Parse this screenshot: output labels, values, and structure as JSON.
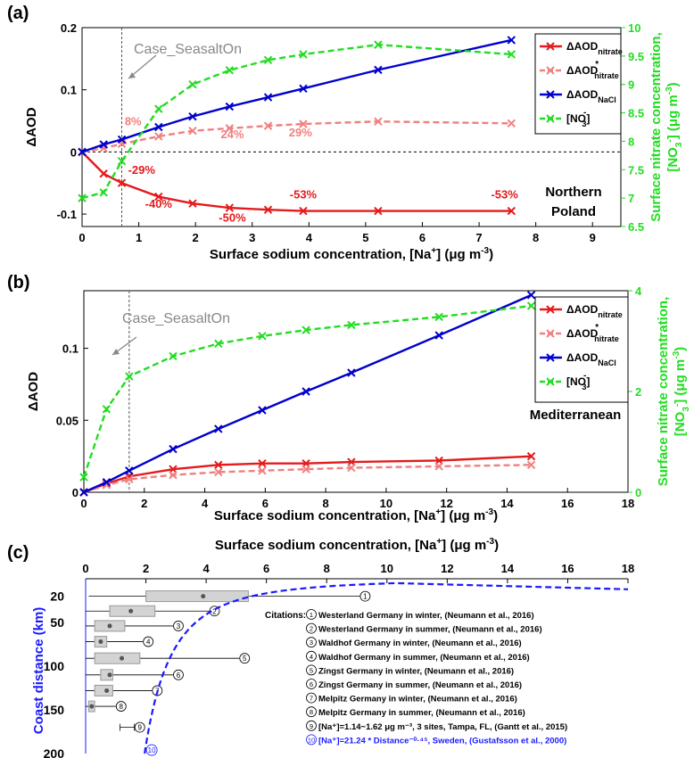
{
  "colors": {
    "nitrate": "#e41a1c",
    "nitrate_star": "#f08080",
    "nacl": "#0000cc",
    "no3": "#22dd22",
    "case_line": "#555555",
    "annotation_gray": "#888888",
    "citation_blue": "#1a1aff",
    "box_fill": "#d3d3d3",
    "box_stroke": "#999999"
  },
  "chart_data": [
    {
      "id": "a",
      "type": "line",
      "panel_label": "(a)",
      "region_label_line1": "Northern",
      "region_label_line2": "Poland",
      "xlabel": "Surface sodium concentration, [Na",
      "xlabel_sup": "+",
      "xlabel_unit": "]  (μg m",
      "xlabel_unit_sup": "-3",
      "xlabel_end": ")",
      "ylabel": "ΔAOD",
      "y2label_line1": "Surface nitrate concentration,",
      "y2label_line2": "[NO",
      "y2label_line2_sub": "3",
      "y2label_line2_sup": "-",
      "y2label_line2_end": "]  (μg m",
      "y2label_line2_unit_sup": "-3",
      "y2label_line2_close": ")",
      "xlim": [
        0,
        9.5
      ],
      "ylim": [
        -0.12,
        0.2
      ],
      "y2lim": [
        6.5,
        10
      ],
      "xticks": [
        "0",
        "1",
        "2",
        "3",
        "4",
        "5",
        "6",
        "7",
        "8",
        "9"
      ],
      "xtick_values": [
        0,
        1,
        2,
        3,
        4,
        5,
        6,
        7,
        8,
        9
      ],
      "yticks": [
        "-0.1",
        "0",
        "0.1",
        "0.2"
      ],
      "ytick_values": [
        -0.1,
        0,
        0.1,
        0.2
      ],
      "y2ticks": [
        "6.5",
        "7",
        "7.5",
        "8",
        "8.5",
        "9",
        "9.5",
        "10"
      ],
      "y2tick_values": [
        6.5,
        7,
        7.5,
        8,
        8.5,
        9,
        9.5,
        10
      ],
      "case_x": 0.7,
      "case_label": "Case_SeasaltOn",
      "legend_placement": "top-right",
      "series": [
        {
          "name": "ΔAOD",
          "sub": "nitrate",
          "sup": "",
          "style": "solid",
          "color_key": "nitrate",
          "axis": "left",
          "x": [
            0,
            0.38,
            0.7,
            1.35,
            1.95,
            2.6,
            3.28,
            3.9,
            5.22,
            7.57
          ],
          "y": [
            0,
            -0.035,
            -0.05,
            -0.072,
            -0.083,
            -0.09,
            -0.093,
            -0.095,
            -0.095,
            -0.095
          ]
        },
        {
          "name": "ΔAOD",
          "sub": "nitrate",
          "sup": "*",
          "style": "dashed",
          "color_key": "nitrate_star",
          "axis": "left",
          "x": [
            0,
            0.38,
            0.7,
            1.35,
            1.95,
            2.6,
            3.28,
            3.9,
            5.22,
            7.57
          ],
          "y": [
            0,
            0.006,
            0.013,
            0.025,
            0.034,
            0.038,
            0.042,
            0.045,
            0.049,
            0.046
          ]
        },
        {
          "name": "ΔAOD",
          "sub": "NaCl",
          "sup": "",
          "style": "solid",
          "color_key": "nacl",
          "axis": "left",
          "x": [
            0,
            0.38,
            0.7,
            1.35,
            1.95,
            2.6,
            3.28,
            3.9,
            5.22,
            7.57
          ],
          "y": [
            0,
            0.012,
            0.02,
            0.04,
            0.057,
            0.073,
            0.088,
            0.102,
            0.132,
            0.18
          ]
        },
        {
          "name": "[NO",
          "sub": "3",
          "sup": "-",
          "name_end": "]",
          "style": "dashed",
          "color_key": "no3",
          "axis": "right",
          "x": [
            0,
            0.38,
            0.7,
            1.35,
            1.95,
            2.6,
            3.28,
            3.9,
            5.22,
            7.57
          ],
          "y": [
            7.0,
            7.1,
            7.65,
            8.57,
            9.0,
            9.25,
            9.43,
            9.53,
            9.7,
            9.53
          ]
        }
      ],
      "annotations": [
        {
          "text": "8%",
          "x": 0.9,
          "y": 0.043,
          "color_key": "nitrate_star"
        },
        {
          "text": "24%",
          "x": 2.65,
          "y": 0.022,
          "color_key": "nitrate_star"
        },
        {
          "text": "29%",
          "x": 3.85,
          "y": 0.025,
          "color_key": "nitrate_star"
        },
        {
          "text": "-29%",
          "x": 1.05,
          "y": -0.035,
          "color_key": "nitrate"
        },
        {
          "text": "-40%",
          "x": 1.35,
          "y": -0.09,
          "color_key": "nitrate"
        },
        {
          "text": "-50%",
          "x": 2.65,
          "y": -0.112,
          "color_key": "nitrate"
        },
        {
          "text": "-53%",
          "x": 3.9,
          "y": -0.075,
          "color_key": "nitrate"
        },
        {
          "text": "-53%",
          "x": 7.45,
          "y": -0.075,
          "color_key": "nitrate"
        }
      ]
    },
    {
      "id": "b",
      "type": "line",
      "panel_label": "(b)",
      "region_label_line1": "Mediterranean",
      "region_label_line2": "",
      "xlabel": "Surface sodium concentration, [Na",
      "xlabel_sup": "+",
      "xlabel_unit": "]  (μg m",
      "xlabel_unit_sup": "-3",
      "xlabel_end": ")",
      "ylabel": "ΔAOD",
      "y2label_line1": "Surface nitrate concentration,",
      "y2label_line2": "[NO",
      "y2label_line2_sub": "3",
      "y2label_line2_sup": "-",
      "y2label_line2_end": "]  (μg m",
      "y2label_line2_unit_sup": "-3",
      "y2label_line2_close": ")",
      "xlim": [
        0,
        18
      ],
      "ylim": [
        0,
        0.14
      ],
      "y2lim": [
        0,
        4
      ],
      "xticks": [
        "0",
        "2",
        "4",
        "6",
        "8",
        "10",
        "12",
        "14",
        "16",
        "18"
      ],
      "xtick_values": [
        0,
        2,
        4,
        6,
        8,
        10,
        12,
        14,
        16,
        18
      ],
      "yticks": [
        "0",
        "0.05",
        "0.1"
      ],
      "ytick_values": [
        0,
        0.05,
        0.1
      ],
      "y2ticks": [
        "0",
        "2",
        "4"
      ],
      "y2tick_values": [
        0,
        2,
        4
      ],
      "case_x": 1.5,
      "case_label": "Case_SeasaltOn",
      "legend_placement": "top-right",
      "series": [
        {
          "name": "ΔAOD",
          "sub": "nitrate",
          "sup": "",
          "style": "solid",
          "color_key": "nitrate",
          "axis": "left",
          "x": [
            0,
            0.75,
            1.5,
            2.95,
            4.45,
            5.9,
            7.35,
            8.85,
            11.75,
            14.8
          ],
          "y": [
            0,
            0.006,
            0.011,
            0.016,
            0.019,
            0.02,
            0.02,
            0.021,
            0.022,
            0.025
          ]
        },
        {
          "name": "ΔAOD",
          "sub": "nitrate",
          "sup": "*",
          "style": "dashed",
          "color_key": "nitrate_star",
          "axis": "left",
          "x": [
            0,
            0.75,
            1.5,
            2.95,
            4.45,
            5.9,
            7.35,
            8.85,
            11.75,
            14.8
          ],
          "y": [
            0,
            0.005,
            0.009,
            0.012,
            0.014,
            0.015,
            0.016,
            0.017,
            0.018,
            0.019
          ]
        },
        {
          "name": "ΔAOD",
          "sub": "NaCl",
          "sup": "",
          "style": "solid",
          "color_key": "nacl",
          "axis": "left",
          "x": [
            0,
            0.75,
            1.5,
            2.95,
            4.45,
            5.9,
            7.35,
            8.85,
            11.75,
            14.8
          ],
          "y": [
            0,
            0.007,
            0.015,
            0.03,
            0.044,
            0.057,
            0.07,
            0.083,
            0.109,
            0.137
          ]
        },
        {
          "name": "[NO",
          "sub": "3",
          "sup": "-",
          "name_end": "]",
          "style": "dashed",
          "color_key": "no3",
          "axis": "right",
          "x": [
            0,
            0.75,
            1.5,
            2.95,
            4.45,
            5.9,
            7.35,
            8.85,
            11.75,
            14.8
          ],
          "y": [
            0.3,
            1.65,
            2.3,
            2.7,
            2.95,
            3.1,
            3.22,
            3.32,
            3.48,
            3.7
          ]
        }
      ],
      "annotations": []
    },
    {
      "id": "c",
      "type": "box",
      "panel_label": "(c)",
      "xlabel": "Surface sodium concentration, [Na",
      "xlabel_sup": "+",
      "xlabel_unit": "]  (μg m",
      "xlabel_unit_sup": "-3",
      "xlabel_end": ")",
      "ylabel": "Coast distance (km)",
      "xlim": [
        0,
        18
      ],
      "ylim": [
        0,
        200
      ],
      "xticks": [
        "0",
        "2",
        "4",
        "6",
        "8",
        "10",
        "12",
        "14",
        "16",
        "18"
      ],
      "xtick_values": [
        0,
        2,
        4,
        6,
        8,
        10,
        12,
        14,
        16,
        18
      ],
      "yticks": [
        "20",
        "50",
        "100",
        "150",
        "200"
      ],
      "ytick_values": [
        20,
        50,
        100,
        150,
        200
      ],
      "boxes": [
        {
          "label": "1",
          "y": 20,
          "whisker": [
            0.1,
            9.1
          ],
          "box": [
            2.0,
            5.4
          ],
          "mean": 3.9
        },
        {
          "label": "2",
          "y": 37,
          "whisker": [
            0.0,
            4.1
          ],
          "box": [
            0.8,
            2.3
          ],
          "mean": 1.5
        },
        {
          "label": "3",
          "y": 54,
          "whisker": [
            0.0,
            2.9
          ],
          "box": [
            0.3,
            1.3
          ],
          "mean": 0.8
        },
        {
          "label": "4",
          "y": 72,
          "whisker": [
            0.0,
            1.9
          ],
          "box": [
            0.3,
            0.7
          ],
          "mean": 0.5
        },
        {
          "label": "5",
          "y": 91,
          "whisker": [
            0.0,
            5.1
          ],
          "box": [
            0.3,
            1.8
          ],
          "mean": 1.2
        },
        {
          "label": "6",
          "y": 110,
          "whisker": [
            0.0,
            2.9
          ],
          "box": [
            0.5,
            0.9
          ],
          "mean": 0.8
        },
        {
          "label": "7",
          "y": 128,
          "whisker": [
            0.0,
            2.2
          ],
          "box": [
            0.3,
            0.9
          ],
          "mean": 0.7
        },
        {
          "label": "8",
          "y": 146,
          "whisker": [
            0.0,
            1.0
          ],
          "box": [
            0.1,
            0.3
          ],
          "mean": 0.2
        },
        {
          "label": "9",
          "y": 170,
          "whisker": [
            1.14,
            1.62
          ],
          "box": null,
          "mean": null
        }
      ],
      "fit_curve": {
        "coef": 21.24,
        "exponent": -0.45,
        "label": "10"
      },
      "citations_title": "Citations:",
      "citations": [
        {
          "num": "1",
          "text": "Westerland Germany in winter, (Neumann et al., 2016)",
          "blue": false
        },
        {
          "num": "2",
          "text": "Westerland Germany in summer, (Neumann et al., 2016)",
          "blue": false
        },
        {
          "num": "3",
          "text": "Waldhof Germany in winter, (Neumann et al., 2016)",
          "blue": false
        },
        {
          "num": "4",
          "text": "Waldhof Germany in summer, (Neumann et al., 2016)",
          "blue": false
        },
        {
          "num": "5",
          "text": "Zingst Germany in winter, (Neumann et al., 2016)",
          "blue": false
        },
        {
          "num": "6",
          "text": "Zingst Germany in summer, (Neumann et al., 2016)",
          "blue": false
        },
        {
          "num": "7",
          "text": "Melpitz Germany in winter, (Neumann et al., 2016)",
          "blue": false
        },
        {
          "num": "8",
          "text": "Melpitz Germany in summer, (Neumann et al., 2016)",
          "blue": false
        },
        {
          "num": "9",
          "text": "[Na⁺]=1.14~1.62 μg m⁻³, 3 sites, Tampa, FL, (Gantt et al., 2015)",
          "blue": false
        },
        {
          "num": "10",
          "text": "[Na⁺]=21.24 * Distance⁻⁰·⁴⁵, Sweden, (Gustafsson et al., 2000)",
          "blue": true
        }
      ]
    }
  ]
}
